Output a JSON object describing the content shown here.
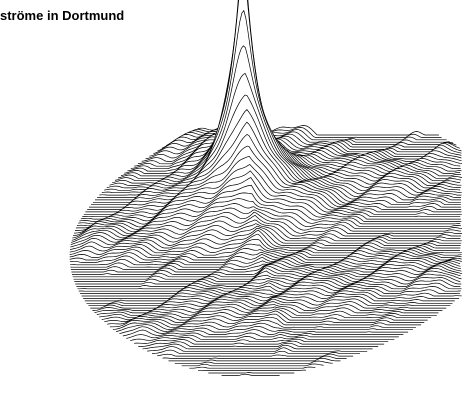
{
  "chart_data": {
    "type": "surface",
    "title": "ströme in Dortmund"
  }
}
